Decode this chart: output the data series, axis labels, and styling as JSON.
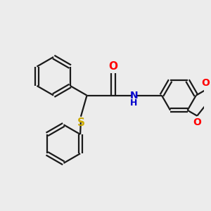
{
  "background_color": "#ececec",
  "bond_color": "#1a1a1a",
  "atom_colors": {
    "O": "#ff0000",
    "N": "#0000cd",
    "S": "#ccaa00",
    "C": "#1a1a1a"
  },
  "lw": 1.6,
  "font_size": 10
}
